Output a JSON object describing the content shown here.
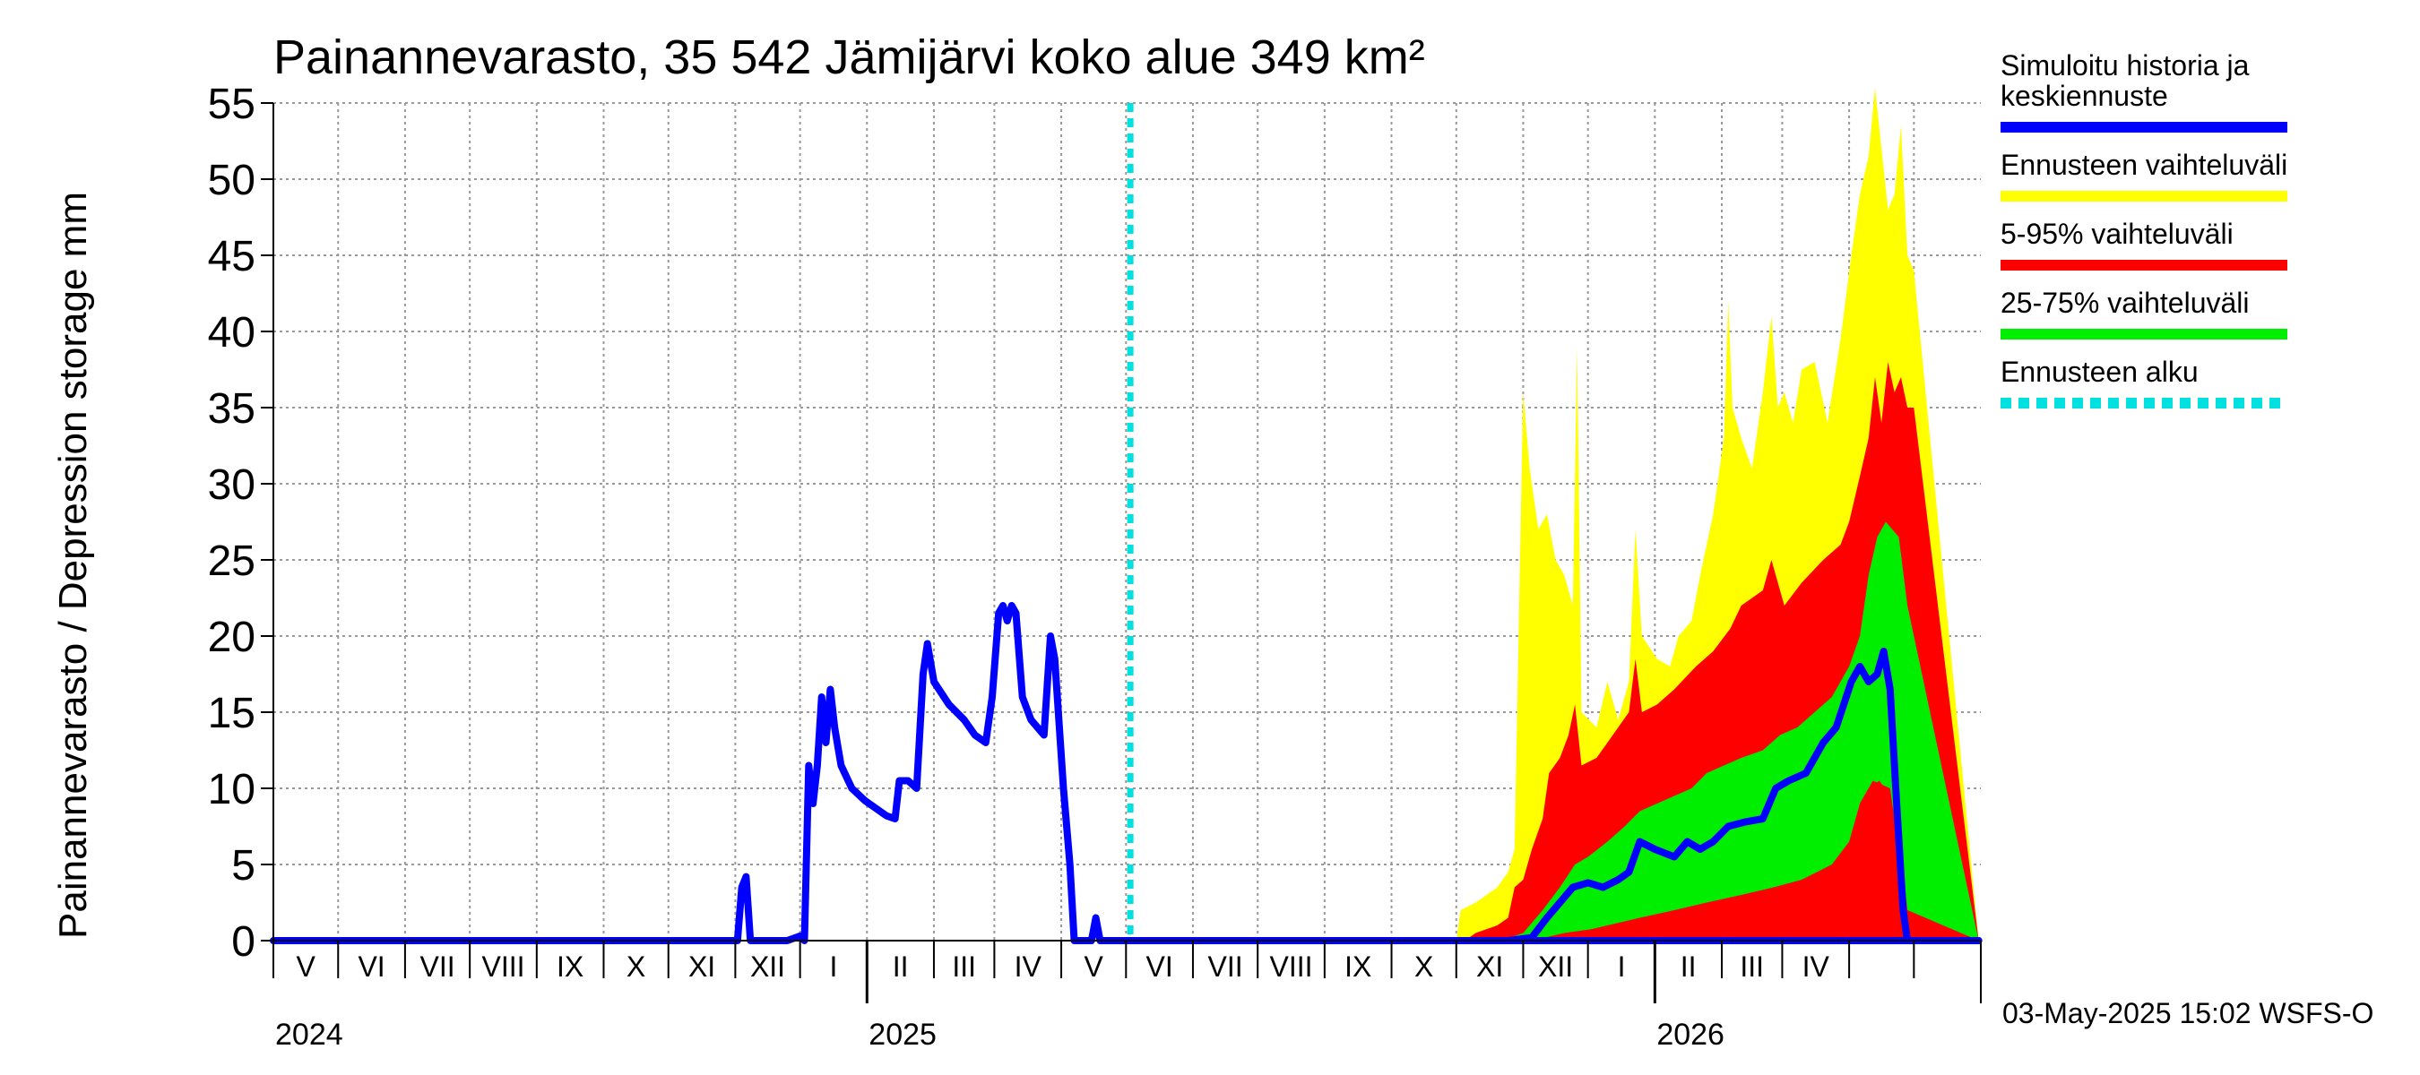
{
  "chart_data": {
    "type": "area",
    "title": "Painannevarasto, 35 542 Jämijärvi koko alue 349 km²",
    "ylabel": "Painannevarasto / Depression storage    mm",
    "ylim": [
      0,
      55
    ],
    "yticks": [
      "0",
      "5",
      "10",
      "15",
      "20",
      "25",
      "30",
      "35",
      "40",
      "45",
      "50",
      "55"
    ],
    "grid": true,
    "legend_position": "right",
    "x_start": "2024-04-01",
    "x_end": "2026-05-31",
    "month_labels": [
      "V",
      "VI",
      "VII",
      "VIII",
      "IX",
      "X",
      "XI",
      "XII",
      "I",
      "II",
      "III",
      "IV",
      "V",
      "VI",
      "VII",
      "VIII",
      "IX",
      "X",
      "XI",
      "XII",
      "I",
      "II",
      "III",
      "IV"
    ],
    "year_labels": [
      {
        "label": "2024",
        "date": "2024-04-01"
      },
      {
        "label": "2025",
        "date": "2025-01-01"
      },
      {
        "label": "2026",
        "date": "2026-01-01"
      }
    ],
    "forecast_start": "2025-05-03",
    "series": [
      {
        "name": "Simuloitu historia ja keskiennuste",
        "color": "#0000ff",
        "points": [
          [
            "2024-04-01",
            0
          ],
          [
            "2024-11-02",
            0
          ],
          [
            "2024-11-04",
            3.5
          ],
          [
            "2024-11-06",
            4.2
          ],
          [
            "2024-11-08",
            0
          ],
          [
            "2024-11-25",
            0
          ],
          [
            "2024-12-01",
            0.3
          ],
          [
            "2024-12-03",
            0
          ],
          [
            "2024-12-05",
            11.5
          ],
          [
            "2024-12-07",
            9.0
          ],
          [
            "2024-12-09",
            11.5
          ],
          [
            "2024-12-11",
            16.0
          ],
          [
            "2024-12-13",
            13.0
          ],
          [
            "2024-12-15",
            16.5
          ],
          [
            "2024-12-17",
            14.0
          ],
          [
            "2024-12-20",
            11.5
          ],
          [
            "2024-12-25",
            10.0
          ],
          [
            "2024-12-31",
            9.2
          ],
          [
            "2025-01-10",
            8.2
          ],
          [
            "2025-01-14",
            8.0
          ],
          [
            "2025-01-16",
            10.5
          ],
          [
            "2025-01-20",
            10.5
          ],
          [
            "2025-01-24",
            10.0
          ],
          [
            "2025-01-27",
            17.5
          ],
          [
            "2025-01-29",
            19.5
          ],
          [
            "2025-02-01",
            17.0
          ],
          [
            "2025-02-08",
            15.5
          ],
          [
            "2025-02-15",
            14.5
          ],
          [
            "2025-02-20",
            13.5
          ],
          [
            "2025-02-25",
            13.0
          ],
          [
            "2025-02-28",
            16.0
          ],
          [
            "2025-03-03",
            21.5
          ],
          [
            "2025-03-05",
            22.0
          ],
          [
            "2025-03-07",
            21.0
          ],
          [
            "2025-03-09",
            22.0
          ],
          [
            "2025-03-11",
            21.5
          ],
          [
            "2025-03-14",
            16.0
          ],
          [
            "2025-03-18",
            14.5
          ],
          [
            "2025-03-24",
            13.5
          ],
          [
            "2025-03-27",
            20.0
          ],
          [
            "2025-03-29",
            18.5
          ],
          [
            "2025-04-02",
            10.0
          ],
          [
            "2025-04-05",
            5.0
          ],
          [
            "2025-04-07",
            0
          ],
          [
            "2025-04-15",
            0
          ],
          [
            "2025-04-17",
            1.5
          ],
          [
            "2025-04-19",
            0
          ],
          [
            "2026-05-31",
            0
          ]
        ]
      },
      {
        "name": "Ennusteen vaihteluväli",
        "color": "#ffff00",
        "upper": [
          [
            "2025-10-01",
            0
          ],
          [
            "2025-10-03",
            2.0
          ],
          [
            "2025-10-10",
            2.5
          ],
          [
            "2025-10-15",
            3.0
          ],
          [
            "2025-10-20",
            3.5
          ],
          [
            "2025-10-25",
            4.5
          ],
          [
            "2025-10-28",
            6.0
          ],
          [
            "2025-11-01",
            36.0
          ],
          [
            "2025-11-04",
            31.0
          ],
          [
            "2025-11-08",
            27.0
          ],
          [
            "2025-11-12",
            28.0
          ],
          [
            "2025-11-16",
            25.0
          ],
          [
            "2025-11-20",
            24.0
          ],
          [
            "2025-11-24",
            22.0
          ],
          [
            "2025-11-26",
            39.0
          ],
          [
            "2025-11-28",
            15.0
          ],
          [
            "2025-12-05",
            14.0
          ],
          [
            "2025-12-10",
            17.0
          ],
          [
            "2025-12-15",
            14.5
          ],
          [
            "2025-12-20",
            17.0
          ],
          [
            "2025-12-23",
            27.0
          ],
          [
            "2025-12-26",
            20.0
          ],
          [
            "2026-01-02",
            18.5
          ],
          [
            "2026-01-08",
            18.0
          ],
          [
            "2026-01-12",
            20.0
          ],
          [
            "2026-01-18",
            21.0
          ],
          [
            "2026-01-22",
            24.0
          ],
          [
            "2026-01-28",
            28.0
          ],
          [
            "2026-02-02",
            33.0
          ],
          [
            "2026-02-04",
            42.0
          ],
          [
            "2026-02-06",
            35.0
          ],
          [
            "2026-02-10",
            33.0
          ],
          [
            "2026-02-15",
            31.0
          ],
          [
            "2026-02-20",
            36.0
          ],
          [
            "2026-02-24",
            41.0
          ],
          [
            "2026-02-27",
            35.0
          ],
          [
            "2026-03-02",
            36.0
          ],
          [
            "2026-03-06",
            34.0
          ],
          [
            "2026-03-10",
            37.5
          ],
          [
            "2026-03-16",
            38.0
          ],
          [
            "2026-03-22",
            34.0
          ],
          [
            "2026-03-28",
            39.5
          ],
          [
            "2026-04-02",
            45.0
          ],
          [
            "2026-04-06",
            49.0
          ],
          [
            "2026-04-10",
            51.5
          ],
          [
            "2026-04-13",
            56.0
          ],
          [
            "2026-04-16",
            52.0
          ],
          [
            "2026-04-19",
            48.0
          ],
          [
            "2026-04-22",
            49.0
          ],
          [
            "2026-04-25",
            53.5
          ],
          [
            "2026-04-28",
            45.0
          ],
          [
            "2026-05-01",
            44.0
          ],
          [
            "2026-05-31",
            0
          ]
        ],
        "lower": [
          [
            "2025-10-01",
            0
          ],
          [
            "2026-05-31",
            0
          ]
        ]
      },
      {
        "name": "5-95% vaihteluväli",
        "color": "#ff0000",
        "upper": [
          [
            "2025-10-05",
            0
          ],
          [
            "2025-10-10",
            0.5
          ],
          [
            "2025-10-20",
            1.0
          ],
          [
            "2025-10-25",
            1.5
          ],
          [
            "2025-10-28",
            3.5
          ],
          [
            "2025-11-01",
            4.0
          ],
          [
            "2025-11-05",
            6.0
          ],
          [
            "2025-11-10",
            8.0
          ],
          [
            "2025-11-13",
            11.0
          ],
          [
            "2025-11-18",
            12.0
          ],
          [
            "2025-11-22",
            13.5
          ],
          [
            "2025-11-25",
            15.5
          ],
          [
            "2025-11-28",
            11.5
          ],
          [
            "2025-12-05",
            12.0
          ],
          [
            "2025-12-10",
            13.0
          ],
          [
            "2025-12-15",
            14.0
          ],
          [
            "2025-12-20",
            15.0
          ],
          [
            "2025-12-23",
            18.5
          ],
          [
            "2025-12-26",
            15.0
          ],
          [
            "2026-01-02",
            15.5
          ],
          [
            "2026-01-10",
            16.5
          ],
          [
            "2026-01-20",
            18.0
          ],
          [
            "2026-01-28",
            19.0
          ],
          [
            "2026-02-05",
            20.5
          ],
          [
            "2026-02-10",
            22.0
          ],
          [
            "2026-02-20",
            23.0
          ],
          [
            "2026-02-24",
            25.0
          ],
          [
            "2026-03-02",
            22.0
          ],
          [
            "2026-03-10",
            23.5
          ],
          [
            "2026-03-20",
            25.0
          ],
          [
            "2026-03-28",
            26.0
          ],
          [
            "2026-04-01",
            27.5
          ],
          [
            "2026-04-06",
            30.5
          ],
          [
            "2026-04-10",
            33.0
          ],
          [
            "2026-04-13",
            37.0
          ],
          [
            "2026-04-16",
            34.0
          ],
          [
            "2026-04-19",
            38.0
          ],
          [
            "2026-04-22",
            36.0
          ],
          [
            "2026-04-25",
            37.0
          ],
          [
            "2026-04-28",
            35.0
          ],
          [
            "2026-05-01",
            35.0
          ],
          [
            "2026-05-31",
            0
          ]
        ],
        "lower": [
          [
            "2025-10-01",
            0
          ],
          [
            "2026-05-31",
            0
          ]
        ]
      },
      {
        "name": "25-75% vaihteluväli",
        "color": "#00ee00",
        "upper": [
          [
            "2025-10-22",
            0
          ],
          [
            "2025-11-01",
            0.5
          ],
          [
            "2025-11-10",
            2.0
          ],
          [
            "2025-11-18",
            3.5
          ],
          [
            "2025-11-25",
            5.0
          ],
          [
            "2025-12-01",
            5.5
          ],
          [
            "2025-12-10",
            6.5
          ],
          [
            "2025-12-18",
            7.5
          ],
          [
            "2025-12-25",
            8.5
          ],
          [
            "2026-01-02",
            9.0
          ],
          [
            "2026-01-10",
            9.5
          ],
          [
            "2026-01-18",
            10.0
          ],
          [
            "2026-01-25",
            11.0
          ],
          [
            "2026-02-02",
            11.5
          ],
          [
            "2026-02-10",
            12.0
          ],
          [
            "2026-02-20",
            12.5
          ],
          [
            "2026-02-28",
            13.5
          ],
          [
            "2026-03-08",
            14.0
          ],
          [
            "2026-03-16",
            15.0
          ],
          [
            "2026-03-24",
            16.0
          ],
          [
            "2026-04-01",
            18.0
          ],
          [
            "2026-04-06",
            20.0
          ],
          [
            "2026-04-10",
            24.0
          ],
          [
            "2026-04-14",
            26.5
          ],
          [
            "2026-04-18",
            27.5
          ],
          [
            "2026-04-24",
            26.5
          ],
          [
            "2026-04-28",
            22.0
          ],
          [
            "2026-05-31",
            0
          ]
        ],
        "lower": [
          [
            "2025-10-22",
            0
          ],
          [
            "2025-11-15",
            0
          ],
          [
            "2025-11-25",
            0.5
          ],
          [
            "2025-12-10",
            1.0
          ],
          [
            "2025-12-25",
            1.5
          ],
          [
            "2026-01-10",
            2.0
          ],
          [
            "2026-01-25",
            2.5
          ],
          [
            "2026-02-10",
            3.0
          ],
          [
            "2026-02-25",
            3.5
          ],
          [
            "2026-03-10",
            4.0
          ],
          [
            "2026-03-24",
            5.0
          ],
          [
            "2026-04-01",
            6.5
          ],
          [
            "2026-04-06",
            9.0
          ],
          [
            "2026-04-10",
            10.0
          ],
          [
            "2026-04-15",
            10.5
          ],
          [
            "2026-04-20",
            9.5
          ],
          [
            "2026-04-25",
            6.0
          ],
          [
            "2026-04-28",
            2.0
          ],
          [
            "2026-05-31",
            0
          ]
        ]
      },
      {
        "name": "Ennusteen alku",
        "color": "#00e0e0",
        "date": "2025-05-03"
      }
    ],
    "red_lower_band": {
      "upper": [
        [
          "2025-11-05",
          0
        ],
        [
          "2025-11-20",
          0.5
        ],
        [
          "2025-12-15",
          1.0
        ],
        [
          "2026-01-02",
          1.5
        ],
        [
          "2026-01-20",
          2.0
        ],
        [
          "2026-02-10",
          1.8
        ],
        [
          "2026-03-01",
          1.6
        ],
        [
          "2026-03-10",
          1.5
        ],
        [
          "2026-03-20",
          3.0
        ],
        [
          "2026-04-01",
          6.0
        ],
        [
          "2026-04-06",
          9.0
        ],
        [
          "2026-04-12",
          10.5
        ],
        [
          "2026-04-20",
          10.0
        ],
        [
          "2026-04-28",
          2.0
        ],
        [
          "2026-05-31",
          0
        ]
      ],
      "lower": [
        [
          "2025-11-05",
          0
        ],
        [
          "2026-05-31",
          0
        ]
      ]
    },
    "median_forecast": [
      [
        "2025-10-25",
        0
      ],
      [
        "2025-11-05",
        0.2
      ],
      [
        "2025-11-12",
        1.5
      ],
      [
        "2025-11-18",
        2.5
      ],
      [
        "2025-11-24",
        3.5
      ],
      [
        "2025-12-01",
        3.8
      ],
      [
        "2025-12-08",
        3.5
      ],
      [
        "2025-12-15",
        4.0
      ],
      [
        "2025-12-20",
        4.5
      ],
      [
        "2025-12-25",
        6.5
      ],
      [
        "2026-01-01",
        6.0
      ],
      [
        "2026-01-10",
        5.5
      ],
      [
        "2026-01-16",
        6.5
      ],
      [
        "2026-01-22",
        6.0
      ],
      [
        "2026-01-28",
        6.5
      ],
      [
        "2026-02-04",
        7.5
      ],
      [
        "2026-02-12",
        7.8
      ],
      [
        "2026-02-20",
        8.0
      ],
      [
        "2026-02-26",
        10.0
      ],
      [
        "2026-03-04",
        10.5
      ],
      [
        "2026-03-12",
        11.0
      ],
      [
        "2026-03-20",
        13.0
      ],
      [
        "2026-03-26",
        14.0
      ],
      [
        "2026-04-02",
        17.0
      ],
      [
        "2026-04-06",
        18.0
      ],
      [
        "2026-04-10",
        17.0
      ],
      [
        "2026-04-14",
        17.5
      ],
      [
        "2026-04-17",
        19.0
      ],
      [
        "2026-04-20",
        16.5
      ],
      [
        "2026-04-23",
        9.0
      ],
      [
        "2026-04-26",
        2.0
      ],
      [
        "2026-04-28",
        0
      ],
      [
        "2026-05-31",
        0
      ]
    ]
  },
  "footer": {
    "timestamp": "03-May-2025 15:02 WSFS-O"
  }
}
